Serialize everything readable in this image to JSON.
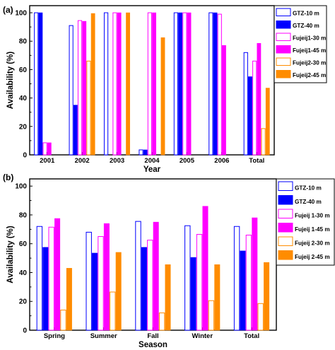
{
  "chart_data": [
    {
      "panel_label": "(a)",
      "type": "bar",
      "xlabel": "Year",
      "ylabel": "Availability (%)",
      "ylim": [
        0,
        105
      ],
      "yticks": [
        0,
        20,
        40,
        60,
        80,
        100
      ],
      "grid": false,
      "legend_position": "top-right",
      "categories": [
        "2001",
        "2002",
        "2003",
        "2004",
        "2005",
        "2006",
        "Total"
      ],
      "series": [
        {
          "name": "GTZ-10 m",
          "color": "#0000ff",
          "fill": "hollow",
          "values": [
            100,
            91,
            100,
            3.5,
            100,
            100,
            72
          ]
        },
        {
          "name": "GTZ-40 m",
          "color": "#0000ff",
          "fill": "solid",
          "values": [
            100,
            35,
            null,
            3.5,
            100,
            100,
            55
          ]
        },
        {
          "name": "Fujeij1-30 m",
          "color": "#ff00ff",
          "fill": "hollow",
          "values": [
            8.5,
            94.5,
            100,
            100,
            100,
            99,
            66
          ]
        },
        {
          "name": "Fujeij1-45 m",
          "color": "#ff00ff",
          "fill": "solid",
          "values": [
            8.5,
            94,
            100,
            100,
            100,
            77,
            78.5
          ]
        },
        {
          "name": "Fujeij2-30 m",
          "color": "#ff8c00",
          "fill": "hollow",
          "values": [
            null,
            66,
            null,
            null,
            null,
            null,
            18.5
          ]
        },
        {
          "name": "Fujeij2-45 m",
          "color": "#ff8c00",
          "fill": "solid",
          "values": [
            null,
            99.5,
            100,
            82.5,
            null,
            null,
            47
          ]
        }
      ]
    },
    {
      "panel_label": "(b)",
      "type": "bar",
      "xlabel": "Season",
      "ylabel": "Availability (%)",
      "ylim": [
        0,
        105
      ],
      "yticks": [
        0,
        20,
        40,
        60,
        80,
        100
      ],
      "grid": false,
      "legend_position": "top-right",
      "categories": [
        "Spring",
        "Summer",
        "Fall",
        "Winter",
        "Total"
      ],
      "series": [
        {
          "name": "GTZ-10 m",
          "color": "#0000ff",
          "fill": "hollow",
          "values": [
            72,
            68,
            75.5,
            72.5,
            72
          ]
        },
        {
          "name": "GTZ-40 m",
          "color": "#0000ff",
          "fill": "solid",
          "values": [
            57.5,
            53.5,
            57.5,
            50.5,
            55
          ]
        },
        {
          "name": "Fujeij 1-30 m",
          "color": "#ff00ff",
          "fill": "hollow",
          "values": [
            71.5,
            65,
            62.5,
            66.5,
            66
          ]
        },
        {
          "name": "Fujeij 1-45 m",
          "color": "#ff00ff",
          "fill": "solid",
          "values": [
            77.5,
            74,
            75,
            86,
            78
          ]
        },
        {
          "name": "Fujeij 2-30 m",
          "color": "#ff8c00",
          "fill": "hollow",
          "values": [
            14,
            26.5,
            12,
            20.5,
            18.5
          ]
        },
        {
          "name": "Fujeij 2-45 m",
          "color": "#ff8c00",
          "fill": "solid",
          "values": [
            43,
            54,
            45.5,
            45.5,
            47
          ]
        }
      ]
    }
  ]
}
